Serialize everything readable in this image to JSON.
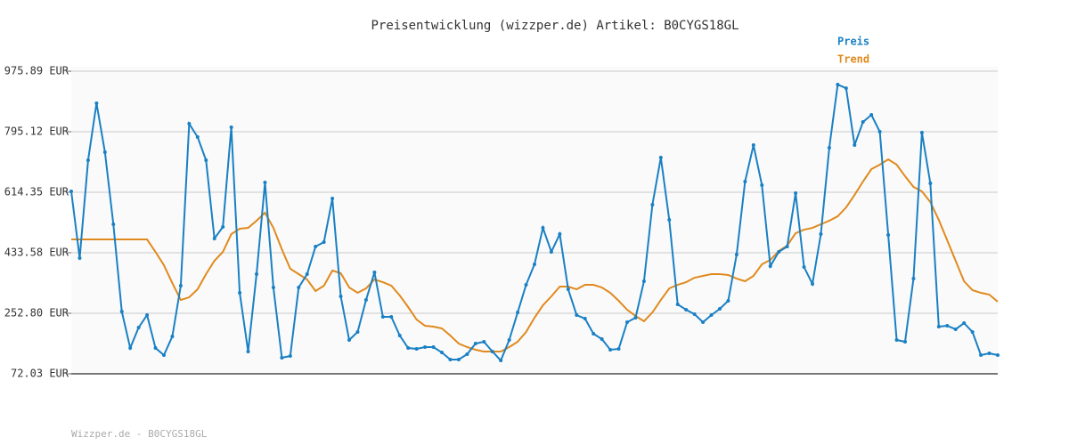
{
  "chart_data": {
    "type": "line",
    "title": "Preisentwicklung (wizzper.de) Artikel: B0CYGS18GL",
    "footer": "Wizzper.de - B0CYGS18GL",
    "ylim": [
      72.03,
      975.89
    ],
    "yticks": [
      {
        "value": 72.03,
        "label": "72.03 EUR"
      },
      {
        "value": 252.8,
        "label": "252.80 EUR"
      },
      {
        "value": 433.58,
        "label": "433.58 EUR"
      },
      {
        "value": 614.35,
        "label": "614.35 EUR"
      },
      {
        "value": 795.12,
        "label": "795.12 EUR"
      },
      {
        "value": 975.89,
        "label": "975.89 EUR"
      }
    ],
    "grid": true,
    "series": [
      {
        "name": "Preis",
        "color": "#1a80c4",
        "markers": true,
        "values": [
          617.0,
          417.6,
          710.0,
          880.1,
          733.9,
          518.6,
          258.1,
          149.1,
          210.3,
          247.5,
          149.1,
          127.9,
          183.7,
          335.2,
          819.0,
          779.1,
          710.0,
          476.1,
          510.6,
          808.3,
          313.9,
          138.5,
          369.7,
          643.5,
          329.9,
          119.9,
          125.2,
          329.9,
          369.7,
          452.1,
          465.4,
          595.7,
          303.3,
          173.0,
          197.0,
          292.6,
          375.0,
          242.1,
          242.1,
          186.3,
          149.1,
          146.5,
          151.8,
          151.8,
          135.8,
          114.6,
          114.6,
          130.5,
          162.4,
          167.7,
          138.5,
          111.9,
          173.0,
          255.4,
          337.8,
          399.0,
          507.9,
          436.2,
          489.3,
          324.5,
          247.5,
          236.8,
          191.6,
          175.7,
          143.8,
          146.5,
          226.2,
          239.5,
          348.5,
          577.0,
          717.9,
          531.9,
          279.4,
          263.4,
          250.1,
          226.2,
          247.5,
          266.1,
          290.0,
          428.2,
          646.2,
          755.1,
          635.5,
          393.6,
          436.2,
          452.1,
          611.6,
          391.0,
          340.5,
          489.3,
          747.2,
          935.9,
          925.2,
          755.1,
          824.2,
          845.5,
          795.0,
          486.7,
          173.0,
          167.7,
          356.4,
          792.4,
          640.8,
          212.9,
          215.6,
          205.0,
          223.5,
          197.0,
          127.9,
          133.2,
          127.9
        ]
      },
      {
        "name": "Trend",
        "color": "#e08a1e",
        "markers": false,
        "values": [
          473.4,
          473.4,
          473.4,
          473.4,
          473.4,
          473.4,
          473.4,
          473.4,
          473.4,
          473.4,
          436.2,
          396.3,
          343.1,
          292.6,
          300.6,
          324.5,
          369.7,
          409.6,
          436.2,
          489.3,
          505.3,
          507.9,
          529.2,
          553.1,
          507.9,
          444.1,
          385.7,
          369.7,
          353.8,
          319.2,
          335.2,
          380.4,
          372.4,
          329.9,
          313.9,
          327.2,
          353.8,
          345.8,
          335.2,
          306.0,
          271.4,
          234.2,
          215.6,
          212.9,
          207.6,
          186.3,
          162.4,
          151.8,
          143.8,
          138.5,
          138.5,
          138.5,
          151.8,
          167.7,
          197.0,
          239.5,
          276.7,
          303.3,
          332.5,
          332.5,
          324.5,
          337.8,
          337.8,
          329.9,
          313.9,
          290.0,
          263.4,
          244.8,
          228.9,
          255.4,
          292.6,
          327.2,
          337.8,
          345.8,
          359.1,
          364.4,
          369.7,
          369.7,
          367.1,
          356.4,
          348.5,
          364.4,
          399.0,
          412.3,
          438.8,
          454.8,
          492.0,
          502.6,
          507.9,
          518.6,
          529.2,
          542.5,
          569.1,
          606.3,
          646.2,
          683.4,
          696.7,
          712.6,
          696.7,
          662.1,
          630.2,
          617.0,
          585.0,
          531.9,
          470.7,
          409.6,
          348.5,
          321.9,
          313.9,
          308.6,
          287.3
        ]
      }
    ]
  }
}
